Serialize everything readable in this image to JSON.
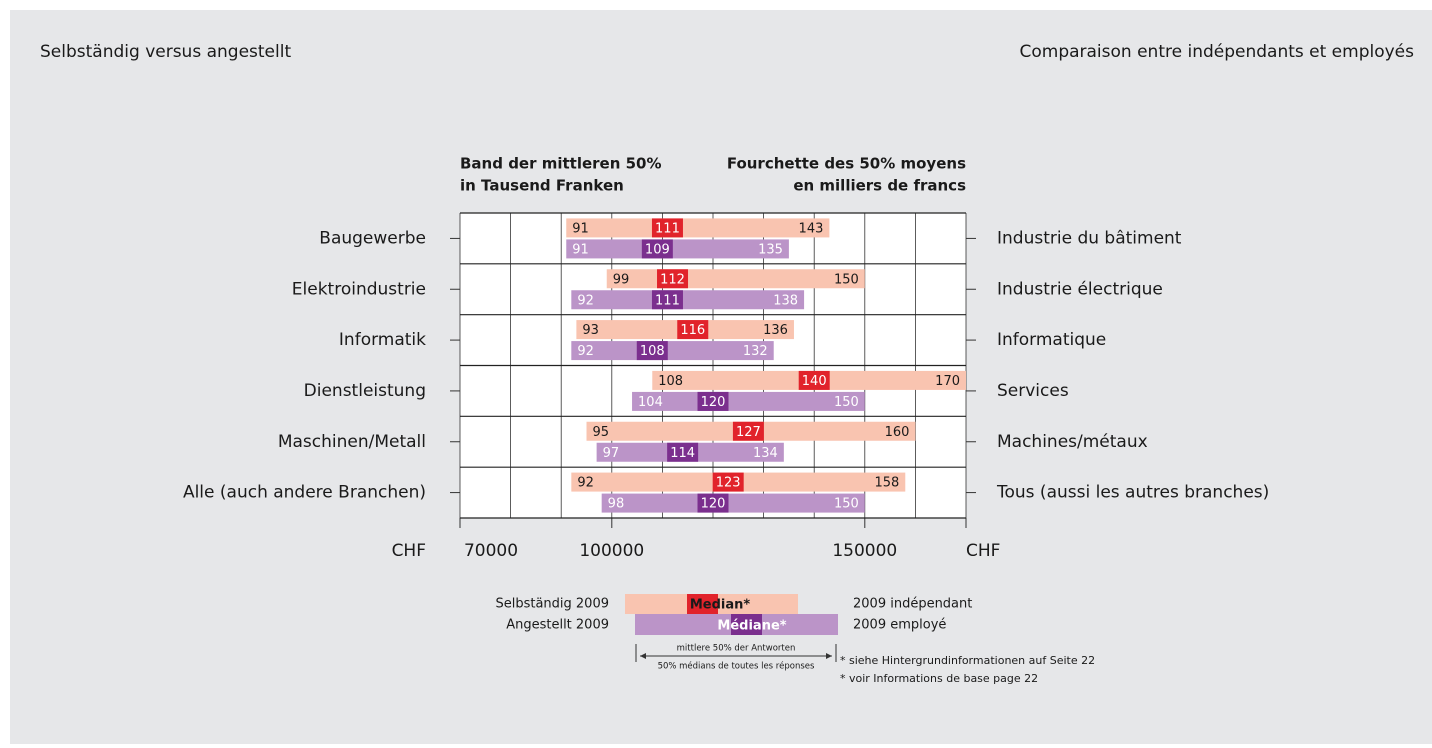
{
  "chart_data": {
    "type": "range_bar",
    "title": "Selbständig versus angestellt",
    "title_fr": "Comparaison entre indépendants et employés",
    "subtitle": [
      "Band der mittleren 50%",
      "in Tausend Franken"
    ],
    "subtitle_fr": [
      "Fourchette des 50% moyens",
      "en milliers de francs"
    ],
    "x_unit": "CHF",
    "categories": [
      "Baugewerbe",
      "Elektroindustrie",
      "Informatik",
      "Dienstleistung",
      "Maschinen/Metall",
      "Alle (auch andere Branchen)"
    ],
    "categories_fr": [
      "Industrie du bâtiment",
      "Industrie électrique",
      "Informatique",
      "Services",
      "Machines/métaux",
      "Tous (aussi les autres branches)"
    ],
    "series": [
      {
        "name": "Selbständig 2009",
        "name_fr": "2009 indépendant",
        "color": "#f9c4b0",
        "median_color": "#e1232b",
        "label_color": "#1a1a1a",
        "low": [
          91000,
          99000,
          93000,
          108000,
          95000,
          92000
        ],
        "low_labels": [
          "91",
          "99",
          "93",
          "108",
          "95",
          "92"
        ],
        "median": [
          111000,
          112000,
          116000,
          140000,
          127000,
          123000
        ],
        "median_labels": [
          "111",
          "112",
          "116",
          "140",
          "127",
          "123"
        ],
        "high": [
          143000,
          150000,
          136000,
          170000,
          160000,
          158000
        ],
        "high_labels": [
          "143",
          "150",
          "136",
          "170",
          "160",
          "158"
        ]
      },
      {
        "name": "Angestellt 2009",
        "name_fr": "2009 employé",
        "color": "#bb94c8",
        "median_color": "#7b2f8e",
        "label_color": "#ffffff",
        "low": [
          91000,
          92000,
          92000,
          104000,
          97000,
          98000
        ],
        "low_labels": [
          "91",
          "92",
          "92",
          "104",
          "97",
          "98"
        ],
        "median": [
          109000,
          111000,
          108000,
          120000,
          114000,
          120000
        ],
        "median_labels": [
          "109",
          "111",
          "108",
          "120",
          "114",
          "120"
        ],
        "high": [
          135000,
          138000,
          132000,
          150000,
          134000,
          150000
        ],
        "high_labels": [
          "135",
          "138",
          "132",
          "150",
          "134",
          "150"
        ]
      }
    ],
    "xlim": [
      70000,
      170000
    ],
    "xticks": [
      70000,
      100000,
      150000
    ],
    "xgrid": [
      70000,
      80000,
      90000,
      100000,
      110000,
      120000,
      130000,
      140000,
      150000,
      160000,
      170000
    ],
    "legend": {
      "median": "Median*",
      "median_fr": "Médiane*",
      "range": "mittlere 50% der Antworten",
      "range_fr": "50% médians de toutes les réponses"
    },
    "footnotes": [
      "* siehe Hintergrundinformationen auf Seite 22",
      "* voir Informations de base page 22"
    ]
  }
}
